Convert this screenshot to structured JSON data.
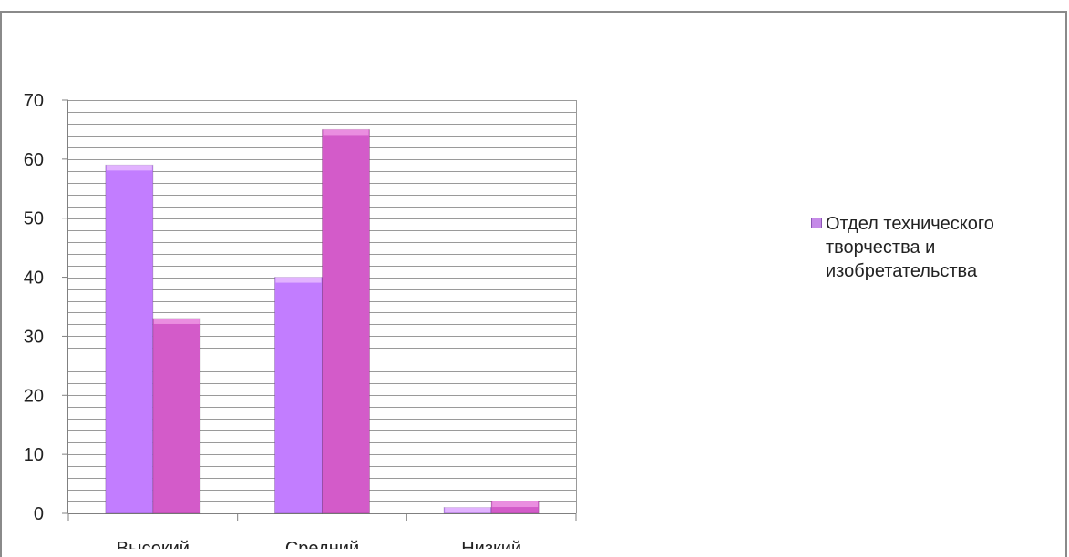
{
  "chart_data": {
    "type": "bar",
    "categories": [
      "Высокий",
      "Средний",
      "Низкий"
    ],
    "series": [
      {
        "name": "Отдел технического творчества и изобретательства",
        "values": [
          59,
          40,
          1
        ],
        "color": "#c27dff",
        "top_color": "#e2b3ff"
      },
      {
        "name": "",
        "values": [
          33,
          65,
          2
        ],
        "color": "#d35bc9",
        "top_color": "#ea8ee0"
      }
    ],
    "ylim": [
      0,
      70
    ],
    "yticks": [
      0,
      10,
      20,
      30,
      40,
      50,
      60,
      70
    ],
    "grid": true,
    "legend_position": "right"
  },
  "legend": {
    "label": "Отдел технического творчества и изобретательства"
  }
}
